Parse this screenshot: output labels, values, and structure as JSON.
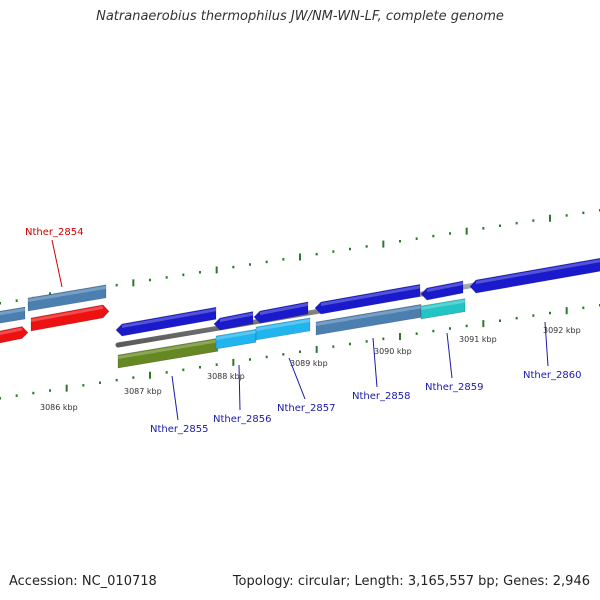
{
  "title": "Natranaerobius thermophilus JW/NM-WN-LF, complete genome",
  "footer": {
    "accession_label": "Accession:",
    "accession": "NC_010718",
    "topology_label": "Topology:",
    "topology": "circular",
    "length_label": "Length:",
    "length": "3,165,557 bp",
    "genes_label": "Genes:",
    "genes": "2,946"
  },
  "colors": {
    "focus_label": "#cc0000",
    "gene_label": "#1a1aaa",
    "tick": "#2a7a2a",
    "backbone": "#888888",
    "dark_blue": "#1a1acc",
    "steel_blue": "#4a7fb0",
    "light_blue": "#22b4ee",
    "cyan": "#22c4c4",
    "olive": "#668822",
    "red": "#ee1111"
  },
  "kbp_labels": [
    "3086 kbp",
    "3087 kbp",
    "3088 kbp",
    "3089 kbp",
    "3090 kbp",
    "3091 kbp",
    "3092 kbp"
  ],
  "genes": [
    {
      "label": "Nther_2854",
      "color": "red",
      "focus": true
    },
    {
      "label": "Nther_2855",
      "color": "olive"
    },
    {
      "label": "Nther_2856",
      "color": "light_blue"
    },
    {
      "label": "Nther_2857",
      "color": "light_blue"
    },
    {
      "label": "Nther_2858",
      "color": "steel_blue"
    },
    {
      "label": "Nther_2859",
      "color": "cyan"
    },
    {
      "label": "Nther_2860",
      "color": "dark_blue"
    }
  ]
}
